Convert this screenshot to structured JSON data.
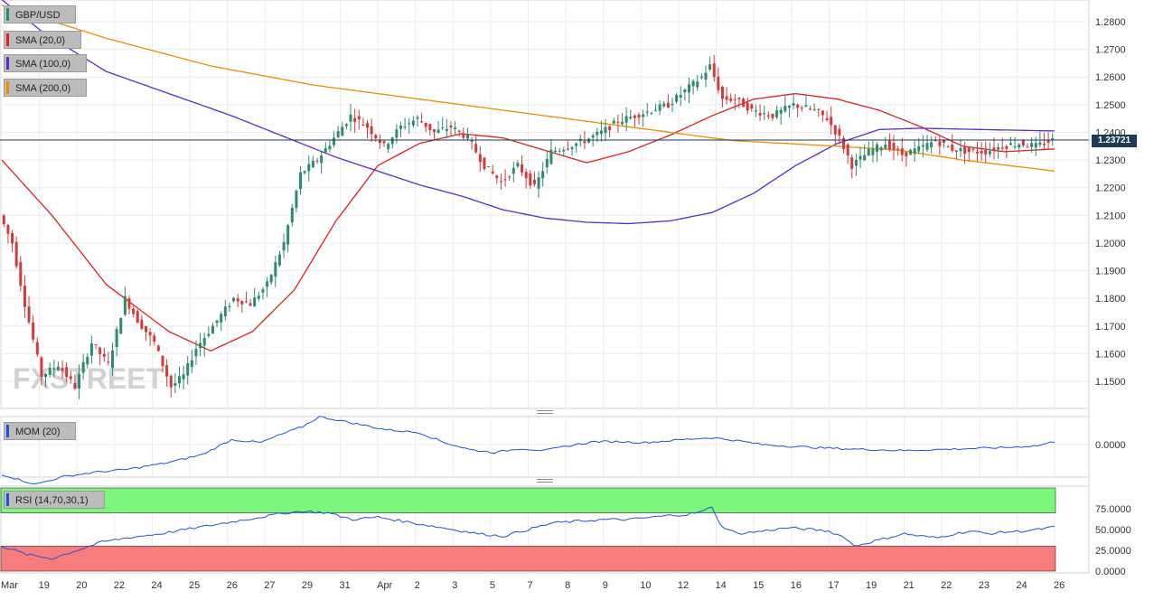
{
  "colors": {
    "up": "#2e8b6e",
    "down": "#d33b3b",
    "sma20": "#e0201e",
    "sma100": "#5a2bd0",
    "sma200": "#f08c00",
    "mom": "#1f4fe0",
    "rsi": "#1f4fe0",
    "rsi_overbought": "#7cf77c",
    "rsi_oversold": "#f77c7c",
    "last_price": "#1e3a55"
  },
  "legend": {
    "symbol": "GBP/USD",
    "sma20": "SMA (20,0)",
    "sma100": "SMA (100,0)",
    "sma200": "SMA (200,0)",
    "mom": "MOM (20)",
    "rsi": "RSI (14,70,30,1)"
  },
  "last_price_label": "1.23721",
  "watermark": "FXSTREET",
  "chart_data": [
    {
      "type": "candlestick",
      "title": "GBP/USD",
      "timeframe_note": "4-hour bars, Mar 18 - Apr 25",
      "x_ticks": [
        "Mar",
        "19",
        "20",
        "22",
        "24",
        "25",
        "26",
        "27",
        "29",
        "31",
        "Apr",
        "2",
        "3",
        "5",
        "7",
        "8",
        "9",
        "10",
        "12",
        "14",
        "15",
        "16",
        "17",
        "19",
        "21",
        "22",
        "23",
        "24",
        "26"
      ],
      "y_ticks": [
        "1.1500",
        "1.1600",
        "1.1700",
        "1.1800",
        "1.1900",
        "1.2000",
        "1.2100",
        "1.2200",
        "1.2300",
        "1.2400",
        "1.2500",
        "1.2600",
        "1.2700",
        "1.2800"
      ],
      "ylim": [
        1.142,
        1.287
      ],
      "last_price": 1.23721,
      "series": [
        {
          "name": "SMA (20,0)",
          "anchors": [
            [
              0,
              1.23
            ],
            [
              12,
              1.21
            ],
            [
              25,
              1.185
            ],
            [
              40,
              1.168
            ],
            [
              50,
              1.161
            ],
            [
              60,
              1.168
            ],
            [
              70,
              1.183
            ],
            [
              80,
              1.208
            ],
            [
              90,
              1.228
            ],
            [
              100,
              1.236
            ],
            [
              110,
              1.2395
            ],
            [
              120,
              1.238
            ],
            [
              130,
              1.2335
            ],
            [
              140,
              1.229
            ],
            [
              150,
              1.233
            ],
            [
              160,
              1.239
            ],
            [
              170,
              1.246
            ],
            [
              180,
              1.252
            ],
            [
              190,
              1.254
            ],
            [
              200,
              1.252
            ],
            [
              210,
              1.248
            ],
            [
              220,
              1.242
            ],
            [
              230,
              1.235
            ],
            [
              240,
              1.233
            ],
            [
              252,
              1.234
            ]
          ]
        },
        {
          "name": "SMA (100,0)",
          "anchors": [
            [
              0,
              1.288
            ],
            [
              10,
              1.276
            ],
            [
              25,
              1.262
            ],
            [
              40,
              1.254
            ],
            [
              55,
              1.246
            ],
            [
              70,
              1.237
            ],
            [
              80,
              1.231
            ],
            [
              90,
              1.226
            ],
            [
              100,
              1.221
            ],
            [
              110,
              1.217
            ],
            [
              120,
              1.212
            ],
            [
              130,
              1.209
            ],
            [
              140,
              1.2075
            ],
            [
              150,
              1.207
            ],
            [
              160,
              1.208
            ],
            [
              170,
              1.211
            ],
            [
              180,
              1.218
            ],
            [
              190,
              1.228
            ],
            [
              200,
              1.236
            ],
            [
              210,
              1.241
            ],
            [
              220,
              1.2415
            ],
            [
              235,
              1.241
            ],
            [
              252,
              1.2405
            ]
          ]
        },
        {
          "name": "SMA (200,0)",
          "anchors": [
            [
              0,
              1.286
            ],
            [
              25,
              1.274
            ],
            [
              50,
              1.264
            ],
            [
              75,
              1.257
            ],
            [
              100,
              1.252
            ],
            [
              125,
              1.247
            ],
            [
              150,
              1.242
            ],
            [
              175,
              1.237
            ],
            [
              200,
              1.235
            ],
            [
              215,
              1.2335
            ],
            [
              230,
              1.23
            ],
            [
              252,
              1.226
            ]
          ]
        }
      ],
      "ohlc_path": [
        [
          0,
          1.21
        ],
        [
          3,
          1.2
        ],
        [
          6,
          1.178
        ],
        [
          10,
          1.152
        ],
        [
          14,
          1.156
        ],
        [
          18,
          1.148
        ],
        [
          22,
          1.164
        ],
        [
          26,
          1.156
        ],
        [
          30,
          1.18
        ],
        [
          33,
          1.172
        ],
        [
          37,
          1.164
        ],
        [
          41,
          1.148
        ],
        [
          44,
          1.152
        ],
        [
          47,
          1.162
        ],
        [
          52,
          1.172
        ],
        [
          56,
          1.18
        ],
        [
          60,
          1.178
        ],
        [
          64,
          1.185
        ],
        [
          68,
          1.2
        ],
        [
          72,
          1.225
        ],
        [
          76,
          1.23
        ],
        [
          80,
          1.238
        ],
        [
          84,
          1.246
        ],
        [
          88,
          1.242
        ],
        [
          92,
          1.235
        ],
        [
          96,
          1.242
        ],
        [
          100,
          1.245
        ],
        [
          104,
          1.24
        ],
        [
          108,
          1.242
        ],
        [
          112,
          1.238
        ],
        [
          116,
          1.228
        ],
        [
          120,
          1.222
        ],
        [
          124,
          1.228
        ],
        [
          128,
          1.22
        ],
        [
          132,
          1.233
        ],
        [
          136,
          1.235
        ],
        [
          140,
          1.237
        ],
        [
          144,
          1.24
        ],
        [
          148,
          1.244
        ],
        [
          152,
          1.246
        ],
        [
          156,
          1.248
        ],
        [
          160,
          1.25
        ],
        [
          164,
          1.255
        ],
        [
          168,
          1.26
        ],
        [
          170,
          1.264
        ],
        [
          173,
          1.252
        ],
        [
          176,
          1.252
        ],
        [
          180,
          1.248
        ],
        [
          185,
          1.246
        ],
        [
          190,
          1.25
        ],
        [
          195,
          1.248
        ],
        [
          198,
          1.245
        ],
        [
          201,
          1.238
        ],
        [
          204,
          1.228
        ],
        [
          208,
          1.233
        ],
        [
          212,
          1.236
        ],
        [
          216,
          1.232
        ],
        [
          220,
          1.234
        ],
        [
          224,
          1.237
        ],
        [
          228,
          1.234
        ],
        [
          232,
          1.233
        ],
        [
          236,
          1.233
        ],
        [
          240,
          1.235
        ],
        [
          244,
          1.236
        ],
        [
          248,
          1.235
        ],
        [
          252,
          1.2372
        ]
      ]
    },
    {
      "type": "line",
      "title": "MOM (20)",
      "y_ticks": [
        "0.0000"
      ],
      "anchors": [
        [
          0,
          -0.03
        ],
        [
          8,
          -0.04
        ],
        [
          15,
          -0.032
        ],
        [
          22,
          -0.028
        ],
        [
          30,
          -0.025
        ],
        [
          40,
          -0.018
        ],
        [
          48,
          -0.01
        ],
        [
          55,
          0.005
        ],
        [
          62,
          0.002
        ],
        [
          68,
          0.012
        ],
        [
          72,
          0.018
        ],
        [
          76,
          0.028
        ],
        [
          80,
          0.025
        ],
        [
          86,
          0.02
        ],
        [
          92,
          0.015
        ],
        [
          100,
          0.012
        ],
        [
          106,
          0.002
        ],
        [
          112,
          -0.005
        ],
        [
          118,
          -0.008
        ],
        [
          124,
          -0.004
        ],
        [
          130,
          -0.006
        ],
        [
          136,
          -0.001
        ],
        [
          142,
          0.003
        ],
        [
          148,
          0.003
        ],
        [
          154,
          0.002
        ],
        [
          160,
          0.004
        ],
        [
          166,
          0.006
        ],
        [
          170,
          0.007
        ],
        [
          176,
          0.004
        ],
        [
          182,
          0.0
        ],
        [
          190,
          -0.002
        ],
        [
          200,
          -0.004
        ],
        [
          208,
          -0.005
        ],
        [
          216,
          -0.006
        ],
        [
          224,
          -0.005
        ],
        [
          232,
          -0.004
        ],
        [
          240,
          -0.003
        ],
        [
          248,
          -0.001
        ],
        [
          252,
          0.003
        ]
      ]
    },
    {
      "type": "line",
      "title": "RSI (14,70,30,1)",
      "y_ticks": [
        "0.0000",
        "25.0000",
        "50.0000",
        "75.0000"
      ],
      "ylim": [
        0,
        100
      ],
      "overbought": 70,
      "oversold": 30,
      "anchors": [
        [
          0,
          30
        ],
        [
          6,
          20
        ],
        [
          12,
          15
        ],
        [
          18,
          25
        ],
        [
          24,
          35
        ],
        [
          30,
          40
        ],
        [
          38,
          45
        ],
        [
          44,
          50
        ],
        [
          50,
          55
        ],
        [
          56,
          60
        ],
        [
          62,
          65
        ],
        [
          68,
          70
        ],
        [
          72,
          72
        ],
        [
          78,
          70
        ],
        [
          84,
          62
        ],
        [
          90,
          65
        ],
        [
          96,
          60
        ],
        [
          102,
          55
        ],
        [
          108,
          50
        ],
        [
          114,
          45
        ],
        [
          120,
          42
        ],
        [
          126,
          50
        ],
        [
          132,
          58
        ],
        [
          138,
          60
        ],
        [
          144,
          62
        ],
        [
          150,
          62
        ],
        [
          156,
          65
        ],
        [
          160,
          67
        ],
        [
          164,
          68
        ],
        [
          168,
          72
        ],
        [
          170,
          78
        ],
        [
          172,
          55
        ],
        [
          176,
          45
        ],
        [
          182,
          48
        ],
        [
          188,
          52
        ],
        [
          194,
          50
        ],
        [
          198,
          48
        ],
        [
          202,
          40
        ],
        [
          204,
          30
        ],
        [
          208,
          35
        ],
        [
          212,
          40
        ],
        [
          216,
          45
        ],
        [
          220,
          42
        ],
        [
          224,
          40
        ],
        [
          228,
          45
        ],
        [
          232,
          48
        ],
        [
          236,
          45
        ],
        [
          240,
          47
        ],
        [
          244,
          48
        ],
        [
          248,
          50
        ],
        [
          252,
          53
        ]
      ]
    }
  ]
}
